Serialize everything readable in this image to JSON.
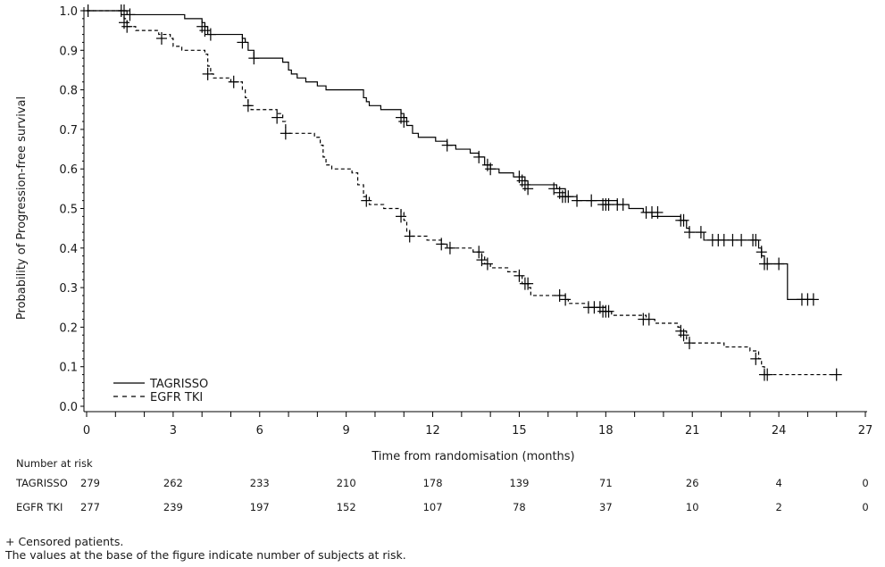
{
  "chart_data": {
    "type": "line",
    "subtype": "kaplan-meier",
    "title": "",
    "xlabel": "Time from randomisation (months)",
    "ylabel": "Probability of Progression-free survival",
    "xlim": [
      0,
      27
    ],
    "ylim": [
      0.0,
      1.0
    ],
    "xticks": [
      0,
      3,
      6,
      9,
      12,
      15,
      18,
      21,
      24,
      27
    ],
    "yticks": [
      0.0,
      0.1,
      0.2,
      0.3,
      0.4,
      0.5,
      0.6,
      0.7,
      0.8,
      0.9,
      1.0
    ],
    "ytick_labels": [
      "0.0",
      "0.1",
      "0.2",
      "0.3",
      "0.4",
      "0.5",
      "0.6",
      "0.7",
      "0.8",
      "0.9",
      "1.0"
    ],
    "grid": false,
    "legend_position": "bottom-left",
    "series": [
      {
        "name": "TAGRISSO",
        "line_style": "solid",
        "steps": [
          [
            0,
            1.0
          ],
          [
            1.4,
            0.99
          ],
          [
            3.4,
            0.98
          ],
          [
            4.0,
            0.97
          ],
          [
            4.1,
            0.96
          ],
          [
            4.2,
            0.94
          ],
          [
            5.4,
            0.93
          ],
          [
            5.5,
            0.92
          ],
          [
            5.6,
            0.9
          ],
          [
            5.8,
            0.88
          ],
          [
            6.8,
            0.87
          ],
          [
            7.0,
            0.85
          ],
          [
            7.1,
            0.84
          ],
          [
            7.3,
            0.83
          ],
          [
            7.6,
            0.82
          ],
          [
            8.0,
            0.81
          ],
          [
            8.3,
            0.8
          ],
          [
            9.6,
            0.78
          ],
          [
            9.7,
            0.77
          ],
          [
            9.8,
            0.76
          ],
          [
            10.2,
            0.75
          ],
          [
            10.9,
            0.74
          ],
          [
            11.0,
            0.73
          ],
          [
            11.1,
            0.71
          ],
          [
            11.3,
            0.69
          ],
          [
            11.5,
            0.68
          ],
          [
            12.1,
            0.67
          ],
          [
            12.5,
            0.66
          ],
          [
            12.8,
            0.65
          ],
          [
            13.3,
            0.64
          ],
          [
            13.6,
            0.63
          ],
          [
            13.8,
            0.61
          ],
          [
            14.0,
            0.6
          ],
          [
            14.3,
            0.59
          ],
          [
            14.8,
            0.58
          ],
          [
            15.2,
            0.57
          ],
          [
            15.3,
            0.56
          ],
          [
            16.3,
            0.55
          ],
          [
            16.6,
            0.53
          ],
          [
            17.0,
            0.52
          ],
          [
            17.6,
            0.52
          ],
          [
            18.4,
            0.51
          ],
          [
            18.8,
            0.5
          ],
          [
            19.3,
            0.49
          ],
          [
            19.6,
            0.48
          ],
          [
            20.0,
            0.48
          ],
          [
            20.6,
            0.47
          ],
          [
            20.8,
            0.45
          ],
          [
            20.9,
            0.44
          ],
          [
            21.4,
            0.42
          ],
          [
            23.3,
            0.4
          ],
          [
            23.4,
            0.38
          ],
          [
            23.5,
            0.36
          ],
          [
            24.3,
            0.27
          ],
          [
            25.2,
            0.27
          ]
        ],
        "censored": [
          [
            0.05,
            1.0
          ],
          [
            1.2,
            1.0
          ],
          [
            1.3,
            1.0
          ],
          [
            1.5,
            0.99
          ],
          [
            4.0,
            0.96
          ],
          [
            4.1,
            0.95
          ],
          [
            4.3,
            0.94
          ],
          [
            5.4,
            0.92
          ],
          [
            5.8,
            0.88
          ],
          [
            10.9,
            0.73
          ],
          [
            11.0,
            0.72
          ],
          [
            12.5,
            0.66
          ],
          [
            13.6,
            0.63
          ],
          [
            13.9,
            0.61
          ],
          [
            14.0,
            0.6
          ],
          [
            15.0,
            0.58
          ],
          [
            15.1,
            0.57
          ],
          [
            15.2,
            0.56
          ],
          [
            15.3,
            0.55
          ],
          [
            16.2,
            0.55
          ],
          [
            16.4,
            0.54
          ],
          [
            16.5,
            0.53
          ],
          [
            16.6,
            0.53
          ],
          [
            16.7,
            0.53
          ],
          [
            17.0,
            0.52
          ],
          [
            17.5,
            0.52
          ],
          [
            17.9,
            0.51
          ],
          [
            18.0,
            0.51
          ],
          [
            18.1,
            0.51
          ],
          [
            18.4,
            0.51
          ],
          [
            18.6,
            0.51
          ],
          [
            19.4,
            0.49
          ],
          [
            19.6,
            0.49
          ],
          [
            19.8,
            0.49
          ],
          [
            20.6,
            0.47
          ],
          [
            20.7,
            0.47
          ],
          [
            20.9,
            0.44
          ],
          [
            21.3,
            0.44
          ],
          [
            21.7,
            0.42
          ],
          [
            21.9,
            0.42
          ],
          [
            22.1,
            0.42
          ],
          [
            22.4,
            0.42
          ],
          [
            22.7,
            0.42
          ],
          [
            23.1,
            0.42
          ],
          [
            23.2,
            0.42
          ],
          [
            23.4,
            0.39
          ],
          [
            23.5,
            0.36
          ],
          [
            23.6,
            0.36
          ],
          [
            24.0,
            0.36
          ],
          [
            24.8,
            0.27
          ],
          [
            25.0,
            0.27
          ],
          [
            25.2,
            0.27
          ]
        ]
      },
      {
        "name": "EGFR TKI",
        "line_style": "dashed",
        "steps": [
          [
            0,
            1.0
          ],
          [
            1.2,
            0.99
          ],
          [
            1.3,
            0.98
          ],
          [
            1.4,
            0.96
          ],
          [
            1.7,
            0.95
          ],
          [
            2.5,
            0.94
          ],
          [
            2.9,
            0.93
          ],
          [
            3.0,
            0.91
          ],
          [
            3.3,
            0.9
          ],
          [
            3.4,
            0.9
          ],
          [
            4.1,
            0.89
          ],
          [
            4.2,
            0.86
          ],
          [
            4.3,
            0.84
          ],
          [
            4.4,
            0.83
          ],
          [
            5.0,
            0.82
          ],
          [
            5.4,
            0.8
          ],
          [
            5.5,
            0.78
          ],
          [
            5.6,
            0.76
          ],
          [
            5.7,
            0.75
          ],
          [
            6.6,
            0.74
          ],
          [
            6.8,
            0.72
          ],
          [
            6.9,
            0.69
          ],
          [
            7.9,
            0.68
          ],
          [
            8.1,
            0.66
          ],
          [
            8.2,
            0.63
          ],
          [
            8.3,
            0.61
          ],
          [
            8.5,
            0.6
          ],
          [
            9.2,
            0.59
          ],
          [
            9.4,
            0.56
          ],
          [
            9.6,
            0.53
          ],
          [
            9.8,
            0.51
          ],
          [
            10.3,
            0.5
          ],
          [
            10.9,
            0.49
          ],
          [
            11.0,
            0.47
          ],
          [
            11.1,
            0.44
          ],
          [
            11.2,
            0.43
          ],
          [
            11.8,
            0.42
          ],
          [
            12.3,
            0.41
          ],
          [
            12.5,
            0.4
          ],
          [
            13.0,
            0.4
          ],
          [
            13.4,
            0.39
          ],
          [
            13.7,
            0.38
          ],
          [
            13.8,
            0.36
          ],
          [
            14.0,
            0.35
          ],
          [
            14.6,
            0.34
          ],
          [
            15.0,
            0.33
          ],
          [
            15.1,
            0.31
          ],
          [
            15.3,
            0.3
          ],
          [
            15.4,
            0.28
          ],
          [
            16.4,
            0.28
          ],
          [
            16.6,
            0.27
          ],
          [
            16.7,
            0.26
          ],
          [
            17.4,
            0.25
          ],
          [
            18.0,
            0.24
          ],
          [
            18.2,
            0.23
          ],
          [
            18.8,
            0.23
          ],
          [
            19.4,
            0.22
          ],
          [
            19.7,
            0.21
          ],
          [
            20.5,
            0.2
          ],
          [
            20.6,
            0.19
          ],
          [
            20.8,
            0.17
          ],
          [
            20.9,
            0.16
          ],
          [
            21.5,
            0.16
          ],
          [
            22.1,
            0.15
          ],
          [
            23.0,
            0.14
          ],
          [
            23.3,
            0.12
          ],
          [
            23.4,
            0.1
          ],
          [
            23.5,
            0.08
          ],
          [
            26.0,
            0.08
          ]
        ],
        "censored": [
          [
            1.3,
            0.97
          ],
          [
            1.4,
            0.96
          ],
          [
            2.6,
            0.93
          ],
          [
            4.2,
            0.84
          ],
          [
            5.1,
            0.82
          ],
          [
            5.6,
            0.76
          ],
          [
            6.6,
            0.73
          ],
          [
            6.9,
            0.69
          ],
          [
            9.7,
            0.52
          ],
          [
            10.9,
            0.48
          ],
          [
            11.2,
            0.43
          ],
          [
            12.3,
            0.41
          ],
          [
            12.6,
            0.4
          ],
          [
            13.6,
            0.39
          ],
          [
            13.7,
            0.37
          ],
          [
            13.9,
            0.36
          ],
          [
            15.0,
            0.33
          ],
          [
            15.2,
            0.31
          ],
          [
            15.3,
            0.31
          ],
          [
            16.4,
            0.28
          ],
          [
            16.6,
            0.27
          ],
          [
            17.4,
            0.25
          ],
          [
            17.6,
            0.25
          ],
          [
            17.8,
            0.25
          ],
          [
            17.9,
            0.24
          ],
          [
            18.0,
            0.24
          ],
          [
            18.1,
            0.24
          ],
          [
            19.3,
            0.22
          ],
          [
            19.5,
            0.22
          ],
          [
            20.6,
            0.19
          ],
          [
            20.7,
            0.18
          ],
          [
            20.9,
            0.16
          ],
          [
            23.2,
            0.12
          ],
          [
            23.5,
            0.08
          ],
          [
            23.6,
            0.08
          ],
          [
            26.0,
            0.08
          ]
        ]
      }
    ],
    "legend": [
      {
        "label": "TAGRISSO",
        "line_style": "solid"
      },
      {
        "label": "EGFR TKI",
        "line_style": "dashed"
      }
    ]
  },
  "risk_table": {
    "title": "Number at risk",
    "times": [
      0,
      3,
      6,
      9,
      12,
      15,
      18,
      21,
      24,
      27
    ],
    "rows": [
      {
        "label": "TAGRISSO",
        "values": [
          279,
          262,
          233,
          210,
          178,
          139,
          71,
          26,
          4,
          0
        ]
      },
      {
        "label": "EGFR TKI",
        "values": [
          277,
          239,
          197,
          152,
          107,
          78,
          37,
          10,
          2,
          0
        ]
      }
    ]
  },
  "footnotes": {
    "line1": "+ Censored patients.",
    "line2": "The values at the base of the figure indicate number of subjects at risk."
  },
  "colors": {
    "line": "#000000",
    "text": "#1a1a1a",
    "background": "#ffffff"
  }
}
